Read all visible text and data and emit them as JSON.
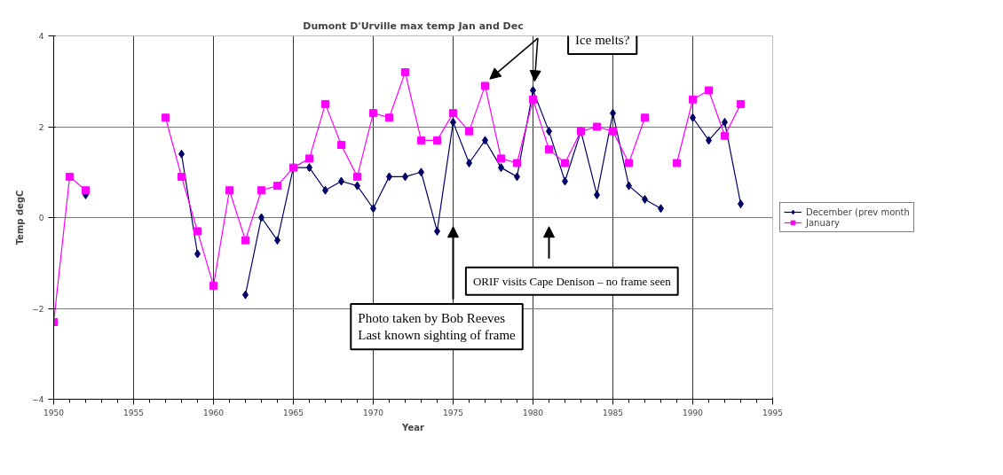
{
  "chart_data": {
    "type": "line",
    "title": "Dumont D'Urville max temp Jan and Dec",
    "xlabel": "Year",
    "ylabel": "Temp degC",
    "x": [
      1950,
      1951,
      1952,
      1953,
      1954,
      1955,
      1956,
      1957,
      1958,
      1959,
      1960,
      1961,
      1962,
      1963,
      1964,
      1965,
      1966,
      1967,
      1968,
      1969,
      1970,
      1971,
      1972,
      1973,
      1974,
      1975,
      1976,
      1977,
      1978,
      1979,
      1980,
      1981,
      1982,
      1983,
      1984,
      1985,
      1986,
      1987,
      1988,
      1989,
      1990,
      1991,
      1992,
      1993
    ],
    "series": [
      {
        "name": "December (prev month",
        "color": "#000066",
        "marker": "diamond",
        "values": [
          null,
          null,
          0.5,
          null,
          null,
          null,
          null,
          null,
          1.4,
          -0.8,
          null,
          null,
          -1.7,
          0.0,
          -0.5,
          1.1,
          1.1,
          0.6,
          0.8,
          0.7,
          0.2,
          0.9,
          0.9,
          1.0,
          -0.3,
          2.1,
          1.2,
          1.7,
          1.1,
          0.9,
          2.8,
          1.9,
          0.8,
          1.9,
          0.5,
          2.3,
          0.7,
          0.4,
          0.2,
          null,
          2.2,
          1.7,
          2.1,
          0.3
        ]
      },
      {
        "name": "January",
        "color": "#ff00ff",
        "marker": "square",
        "values": [
          -2.3,
          0.9,
          0.6,
          null,
          null,
          null,
          null,
          2.2,
          0.9,
          -0.3,
          -1.5,
          0.6,
          -0.5,
          0.6,
          0.7,
          1.1,
          1.3,
          2.5,
          1.6,
          0.9,
          2.3,
          2.2,
          3.2,
          1.7,
          1.7,
          2.3,
          1.9,
          2.9,
          1.3,
          1.2,
          2.6,
          1.5,
          1.2,
          1.9,
          2.0,
          1.9,
          1.2,
          2.2,
          null,
          1.2,
          2.6,
          2.8,
          1.8,
          2.5
        ]
      }
    ],
    "xlim": [
      1950,
      1995
    ],
    "xticks": [
      1950,
      1955,
      1960,
      1965,
      1970,
      1975,
      1980,
      1985,
      1990,
      1995
    ],
    "ylim": [
      -4,
      4
    ],
    "yticks": [
      -4,
      -2,
      0,
      2,
      4
    ],
    "grid": true,
    "legend": "right",
    "annotations": [
      "Ice melts?",
      "ORIF visits Cape Denison – no frame seen",
      "Photo taken by Bob Reeves\nLast known sighting of frame"
    ]
  }
}
